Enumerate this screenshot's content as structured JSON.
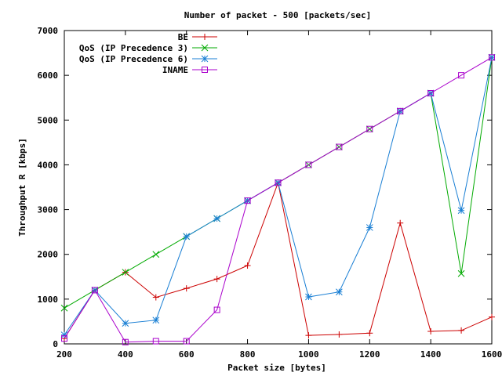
{
  "chart_data": {
    "type": "line",
    "title": "Number of packet - 500 [packets/sec]",
    "xlabel": "Packet size [bytes]",
    "ylabel": "Throughput R [kbps]",
    "xlim": [
      200,
      1600
    ],
    "ylim": [
      0,
      7000
    ],
    "xticks": [
      200,
      400,
      600,
      800,
      1000,
      1200,
      1400,
      1600
    ],
    "yticks": [
      0,
      1000,
      2000,
      3000,
      4000,
      5000,
      6000,
      7000
    ],
    "x": [
      200,
      300,
      400,
      500,
      600,
      700,
      800,
      900,
      1000,
      1100,
      1200,
      1300,
      1400,
      1500,
      1600
    ],
    "legend_position": "top-left",
    "grid": false,
    "series": [
      {
        "name": "BE",
        "color": "#cc0000",
        "marker": "plus",
        "values": [
          120,
          1200,
          1600,
          1040,
          1240,
          1450,
          1750,
          3600,
          190,
          210,
          240,
          2700,
          280,
          300,
          600
        ]
      },
      {
        "name": "QoS (IP Precedence 3)",
        "color": "#00aa00",
        "marker": "cross",
        "values": [
          800,
          1200,
          1600,
          2000,
          2400,
          2800,
          3200,
          3600,
          4000,
          4400,
          4800,
          5200,
          5600,
          1570,
          6400
        ]
      },
      {
        "name": "QoS (IP Precedence 6)",
        "color": "#1a7fd4",
        "marker": "star",
        "values": [
          200,
          1200,
          460,
          530,
          2400,
          2800,
          3200,
          3600,
          1050,
          1160,
          2600,
          5200,
          5600,
          2980,
          6400
        ]
      },
      {
        "name": "INAME",
        "color": "#aa00cc",
        "marker": "box",
        "values": [
          120,
          1200,
          40,
          60,
          60,
          760,
          3200,
          3600,
          4000,
          4400,
          4800,
          5200,
          5600,
          6000,
          6400
        ]
      }
    ]
  }
}
